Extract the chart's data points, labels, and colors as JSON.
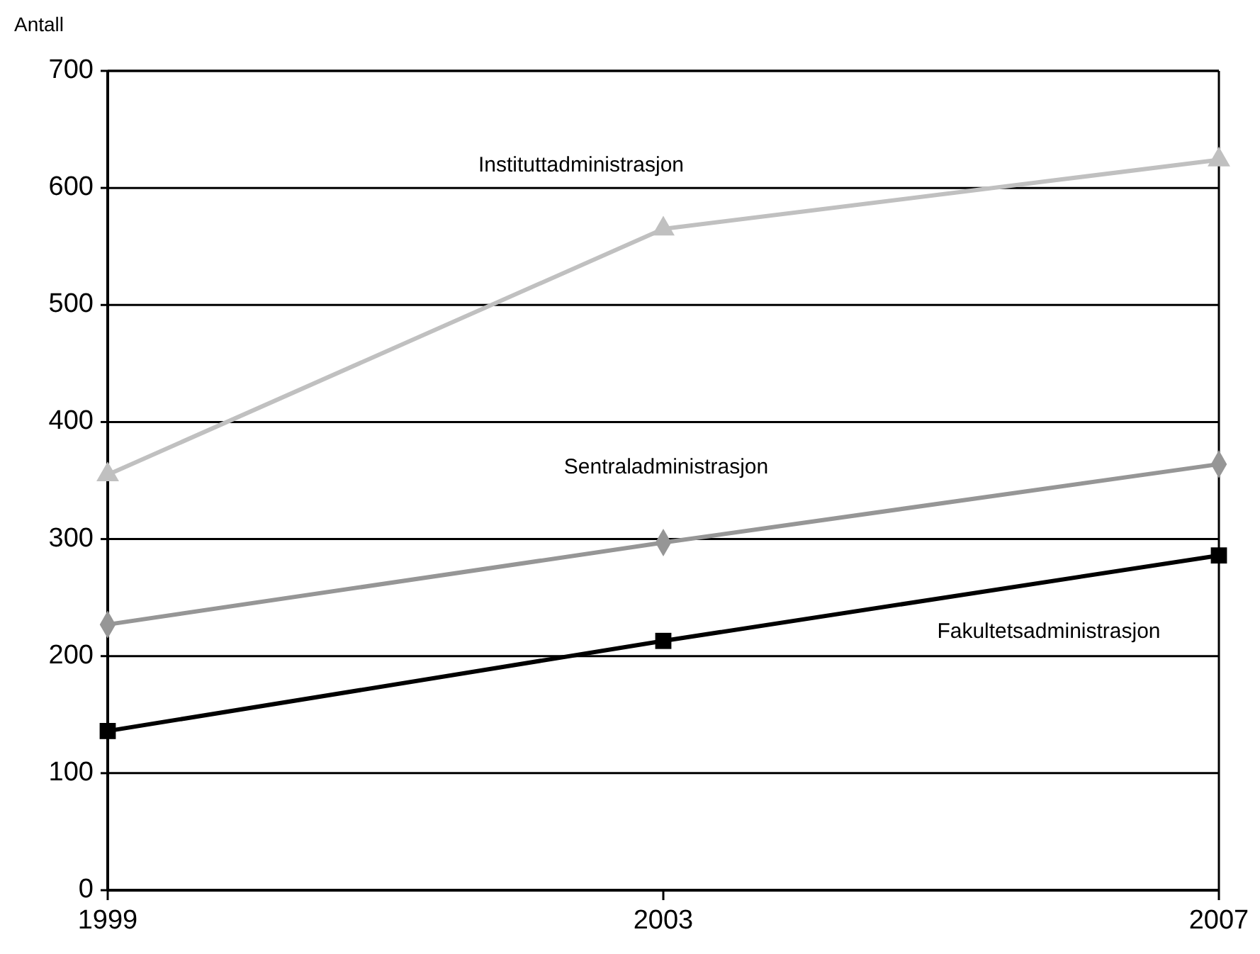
{
  "chart_data": {
    "type": "line",
    "ylabel": "Antall",
    "x": [
      1999,
      2003,
      2007
    ],
    "xlim": [
      1999,
      2007
    ],
    "xticks": [
      1999,
      2003,
      2007
    ],
    "ylim": [
      0,
      700
    ],
    "yticks": [
      0,
      100,
      200,
      300,
      400,
      500,
      600,
      700
    ],
    "grid": "y",
    "legend": false,
    "series": [
      {
        "name": "Instituttadministrasjon",
        "color": "#c0c0c0",
        "marker": "triangle",
        "values": [
          355,
          565,
          624
        ]
      },
      {
        "name": "Sentraladministrasjon",
        "color": "#969696",
        "marker": "diamond",
        "values": [
          227,
          297,
          364
        ]
      },
      {
        "name": "Fakultetsadministrasjon",
        "color": "#000000",
        "marker": "square",
        "values": [
          136,
          213,
          286
        ]
      }
    ]
  }
}
